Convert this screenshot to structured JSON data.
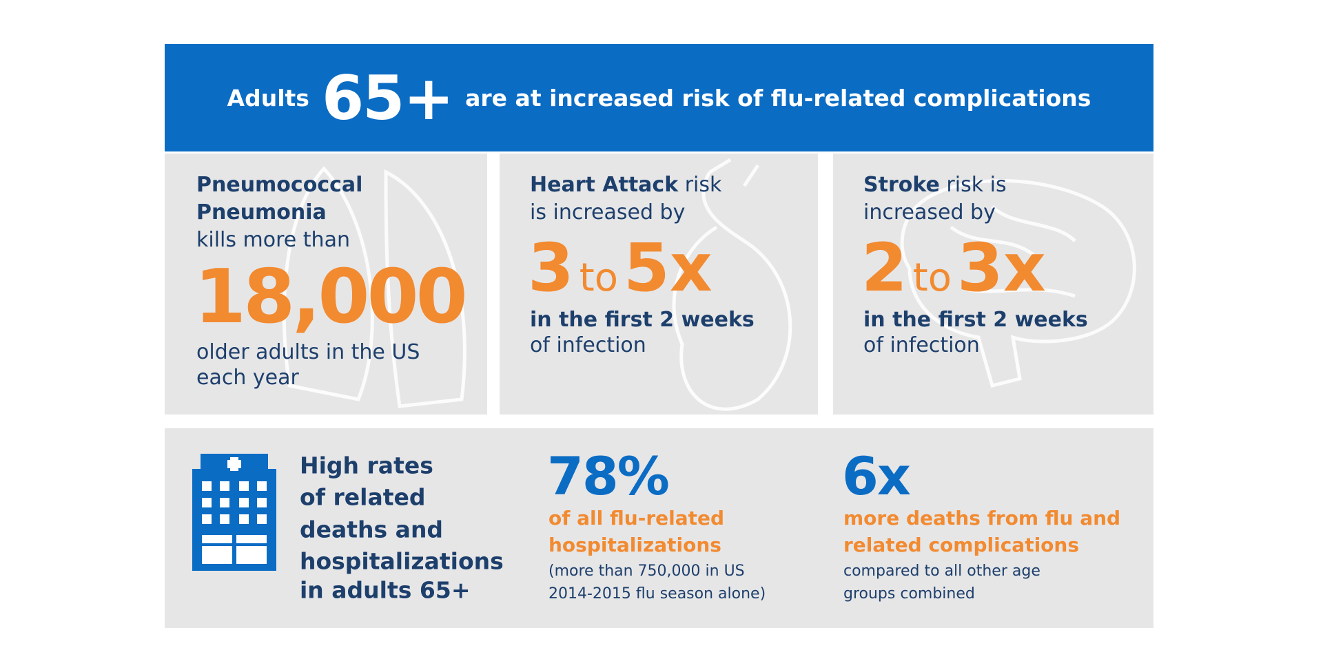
{
  "header": {
    "prefix": "Adults",
    "highlight": "65+",
    "suffix": "are at increased risk of flu-related complications"
  },
  "panels": [
    {
      "title_lines": [
        "Pneumococcal",
        "Pneumonia"
      ],
      "lead": "kills more than",
      "number": "18,000",
      "footer_lines": [
        "older adults in the US",
        "each year"
      ]
    },
    {
      "title_bold": "Heart Attack",
      "title_rest": "risk",
      "lead": "is increased by",
      "low": "3",
      "connector": "to",
      "high": "5x",
      "footer_bold": "in the first 2 weeks",
      "footer": "of infection"
    },
    {
      "title_bold": "Stroke",
      "title_rest": "risk is",
      "lead": "increased by",
      "low": "2",
      "connector": "to",
      "high": "3x",
      "footer_bold": "in the first 2 weeks",
      "footer": "of infection"
    }
  ],
  "bottom": {
    "lead_lines": [
      "High rates",
      "of related",
      "deaths and",
      "hospitalizations",
      "in adults 65+"
    ],
    "stats": [
      {
        "number": "78%",
        "label_lines": [
          "of all flu-related",
          "hospitalizations"
        ],
        "note_lines": [
          "(more than 750,000 in US",
          "2014-2015 flu season alone)"
        ]
      },
      {
        "number": "6x",
        "label_lines": [
          "more deaths from flu and",
          "related complications"
        ],
        "note_lines": [
          "compared to all other age",
          "groups combined"
        ]
      }
    ]
  }
}
